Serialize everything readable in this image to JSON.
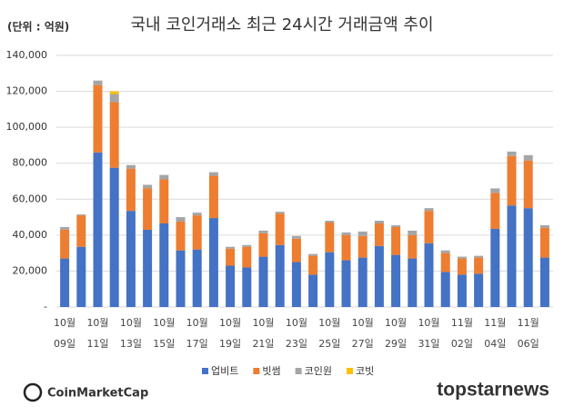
{
  "chart_data": {
    "type": "stacked_bar",
    "title": "국내 코인거래소 최근 24시간 거래금액 추이",
    "unit_label": "(단위 : 억원)",
    "categories": [
      "10월\n09일",
      null,
      "10월\n11일",
      null,
      "10월\n13일",
      null,
      "10월\n15일",
      null,
      "10월\n17일",
      null,
      "10월\n19일",
      null,
      "10월\n21일",
      null,
      "10월\n23일",
      null,
      "10월\n25일",
      null,
      "10월\n27일",
      null,
      "10월\n29일",
      null,
      "10월\n31일",
      null,
      "11월\n02일",
      null,
      "11월\n04일",
      null,
      "11월\n06일",
      null
    ],
    "series": [
      {
        "name": "업비트",
        "color": "#4472c4",
        "values": [
          27000,
          33500,
          86000,
          77500,
          53500,
          43000,
          46500,
          31500,
          32000,
          49500,
          23000,
          22000,
          28000,
          34500,
          25000,
          18000,
          30500,
          26000,
          27500,
          34000,
          29000,
          27000,
          35500,
          19500,
          18000,
          18500,
          43500,
          56500,
          55000,
          27500
        ]
      },
      {
        "name": "빗썸",
        "color": "#ed7d31",
        "values": [
          16000,
          17500,
          37500,
          36500,
          23500,
          23000,
          24500,
          16000,
          19000,
          23500,
          9500,
          11500,
          13000,
          17500,
          13000,
          10500,
          16500,
          14000,
          12000,
          12500,
          15500,
          13000,
          18000,
          10500,
          9000,
          9000,
          20000,
          27500,
          26500,
          16500
        ]
      },
      {
        "name": "코인원",
        "color": "#a5a5a5",
        "values": [
          1500,
          500,
          2500,
          4500,
          2000,
          2000,
          2500,
          2500,
          1500,
          2000,
          1000,
          1000,
          1500,
          1000,
          1500,
          1000,
          1000,
          1500,
          2500,
          1500,
          1000,
          2500,
          1500,
          1500,
          1000,
          1000,
          2500,
          2500,
          3000,
          1500
        ]
      },
      {
        "name": "코빗",
        "color": "#ffc000",
        "values": [
          0,
          0,
          0,
          1500,
          0,
          0,
          0,
          0,
          0,
          0,
          0,
          0,
          0,
          0,
          0,
          0,
          0,
          0,
          0,
          0,
          0,
          0,
          0,
          0,
          0,
          0,
          0,
          0,
          0,
          0
        ]
      }
    ],
    "ylim": [
      0,
      140000
    ],
    "yticks": [
      {
        "value": 0,
        "label": "-"
      },
      {
        "value": 20000,
        "label": "20,000"
      },
      {
        "value": 40000,
        "label": "40,000"
      },
      {
        "value": 60000,
        "label": "60,000"
      },
      {
        "value": 80000,
        "label": "80,000"
      },
      {
        "value": 100000,
        "label": "100,000"
      },
      {
        "value": 120000,
        "label": "120,000"
      },
      {
        "value": 140000,
        "label": "140,000"
      }
    ],
    "grid": true,
    "legend": "bottom",
    "source_logos": [
      "CoinMarketCap",
      "topstarnews"
    ]
  }
}
